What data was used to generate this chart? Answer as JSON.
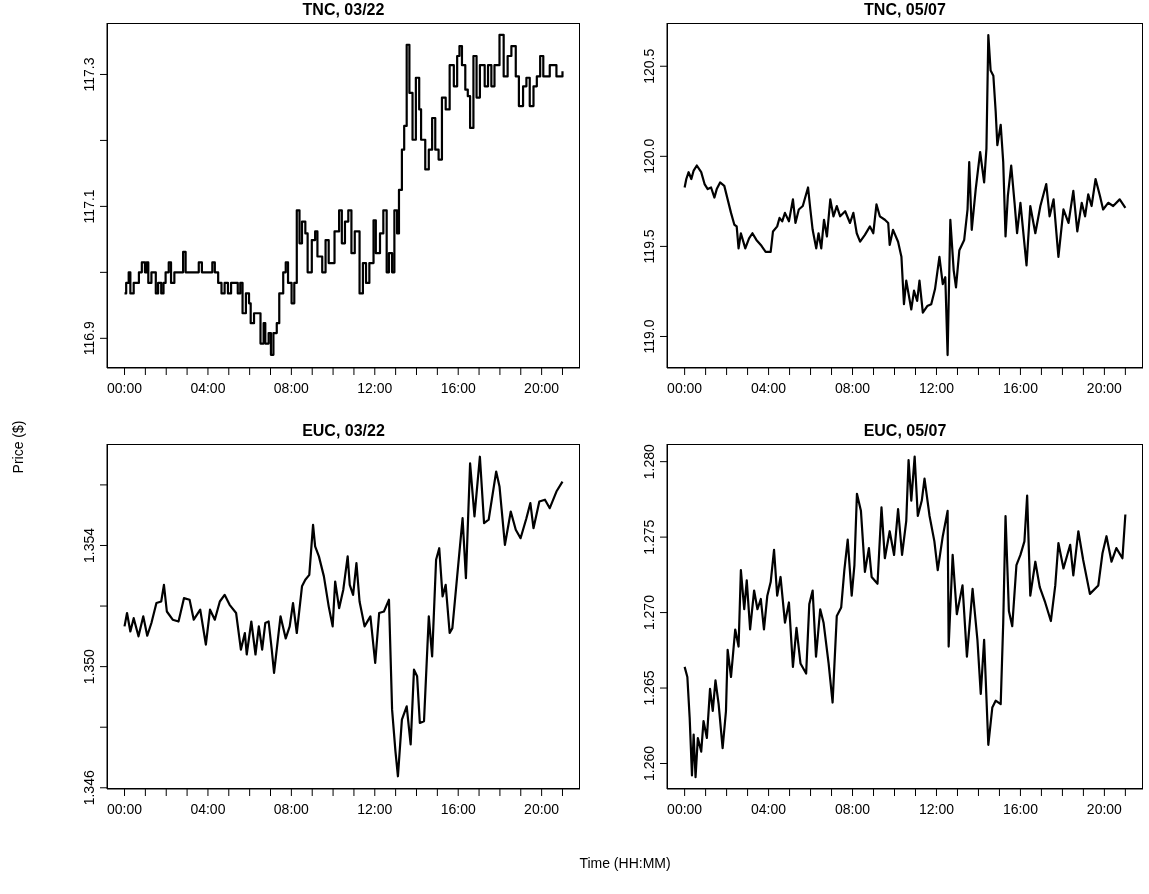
{
  "chart_data": [
    {
      "type": "step",
      "title": "TNC, 03/22",
      "ylabel": "Price ($)",
      "color": "#000000",
      "x": [
        0,
        0.08,
        0.2,
        0.28,
        0.44,
        0.59,
        0.69,
        0.83,
        0.98,
        1.06,
        1.14,
        1.29,
        1.5,
        1.61,
        1.76,
        1.87,
        1.97,
        2.12,
        2.23,
        2.39,
        2.81,
        2.93,
        3.56,
        3.71,
        4.21,
        4.33,
        4.49,
        4.65,
        4.8,
        4.96,
        5.11,
        5.43,
        5.55,
        5.66,
        5.82,
        5.97,
        6.05,
        6.21,
        6.52,
        6.67,
        6.75,
        6.91,
        7.02,
        7.14,
        7.3,
        7.42,
        7.61,
        7.73,
        7.84,
        8.01,
        8.14,
        8.26,
        8.39,
        8.51,
        8.67,
        8.78,
        8.98,
        9.14,
        9.25,
        9.48,
        9.64,
        9.79,
        10.07,
        10.29,
        10.42,
        10.57,
        10.73,
        10.88,
        11.04,
        11.27,
        11.43,
        11.58,
        11.74,
        11.94,
        12.05,
        12.25,
        12.41,
        12.57,
        12.68,
        12.83,
        12.94,
        13.07,
        13.16,
        13.3,
        13.41,
        13.53,
        13.66,
        13.81,
        13.97,
        14.13,
        14.22,
        14.42,
        14.59,
        14.75,
        14.9,
        15.06,
        15.22,
        15.4,
        15.59,
        15.79,
        15.95,
        16.06,
        16.18,
        16.34,
        16.46,
        16.57,
        16.73,
        16.88,
        17.04,
        17.27,
        17.43,
        17.59,
        17.74,
        17.98,
        18.18,
        18.37,
        18.55,
        18.76,
        18.91,
        19.11,
        19.27,
        19.43,
        19.61,
        19.77,
        19.93,
        20.08,
        20.39,
        20.71,
        21
      ],
      "values": [
        116.968,
        116.984,
        117.0,
        116.968,
        116.984,
        116.984,
        117.0,
        117.015,
        117.0,
        117.015,
        116.984,
        117.0,
        116.968,
        116.984,
        116.968,
        116.984,
        117.0,
        117.015,
        116.984,
        117.0,
        117.031,
        117.0,
        117.015,
        117.0,
        117.015,
        117.0,
        116.984,
        116.968,
        116.984,
        116.968,
        116.984,
        116.968,
        116.984,
        116.938,
        116.968,
        116.953,
        116.923,
        116.938,
        116.892,
        116.923,
        116.892,
        116.908,
        116.875,
        116.908,
        116.923,
        116.968,
        117.0,
        117.015,
        116.984,
        116.953,
        116.984,
        117.094,
        117.044,
        117.077,
        117.059,
        117.0,
        117.049,
        117.062,
        117.024,
        117.0,
        117.049,
        117.014,
        117.062,
        117.094,
        117.044,
        117.077,
        117.094,
        117.029,
        117.062,
        116.968,
        117.014,
        116.984,
        117.014,
        117.079,
        117.029,
        117.059,
        117.094,
        117.0,
        117.029,
        117.0,
        117.094,
        117.059,
        117.125,
        117.186,
        117.222,
        117.345,
        117.272,
        117.201,
        117.295,
        117.247,
        117.201,
        117.156,
        117.186,
        117.234,
        117.186,
        117.171,
        117.265,
        117.247,
        117.314,
        117.282,
        117.328,
        117.343,
        117.314,
        117.277,
        117.267,
        117.219,
        117.328,
        117.265,
        117.314,
        117.282,
        117.314,
        117.282,
        117.314,
        117.36,
        117.297,
        117.328,
        117.343,
        117.297,
        117.252,
        117.282,
        117.295,
        117.252,
        117.282,
        117.297,
        117.328,
        117.297,
        117.314,
        117.297,
        117.305
      ],
      "xlim": [
        -0.84,
        21.84
      ],
      "xticks": [
        {
          "value": 0,
          "label": "00:00"
        },
        {
          "value": 1,
          "label": null
        },
        {
          "value": 2,
          "label": null
        },
        {
          "value": 3,
          "label": null
        },
        {
          "value": 4,
          "label": "04:00"
        },
        {
          "value": 5,
          "label": null
        },
        {
          "value": 6,
          "label": null
        },
        {
          "value": 7,
          "label": null
        },
        {
          "value": 8,
          "label": "08:00"
        },
        {
          "value": 9,
          "label": null
        },
        {
          "value": 10,
          "label": null
        },
        {
          "value": 11,
          "label": null
        },
        {
          "value": 12,
          "label": "12:00"
        },
        {
          "value": 13,
          "label": null
        },
        {
          "value": 14,
          "label": null
        },
        {
          "value": 15,
          "label": null
        },
        {
          "value": 16,
          "label": "16:00"
        },
        {
          "value": 17,
          "label": null
        },
        {
          "value": 18,
          "label": null
        },
        {
          "value": 19,
          "label": null
        },
        {
          "value": 20,
          "label": "20:00"
        },
        {
          "value": 21,
          "label": null
        }
      ],
      "ylim": [
        116.855,
        117.378
      ],
      "yticks": [
        116.9,
        {
          "value": 117.0,
          "label": null
        },
        117.1,
        {
          "value": 117.2,
          "label": null
        },
        117.3
      ]
    },
    {
      "type": "line",
      "title": "TNC, 05/07",
      "color": "#000000",
      "x": [
        0,
        0.08,
        0.19,
        0.32,
        0.43,
        0.58,
        0.79,
        0.95,
        1.1,
        1.26,
        1.42,
        1.53,
        1.69,
        1.89,
        2.05,
        2.21,
        2.37,
        2.48,
        2.57,
        2.68,
        2.89,
        3.07,
        3.23,
        3.42,
        3.63,
        3.86,
        4.1,
        4.21,
        4.41,
        4.52,
        4.65,
        4.78,
        4.97,
        5.16,
        5.28,
        5.44,
        5.63,
        5.88,
        5.99,
        6.1,
        6.27,
        6.38,
        6.51,
        6.64,
        6.78,
        6.94,
        7.09,
        7.25,
        7.41,
        7.65,
        7.88,
        8.04,
        8.2,
        8.36,
        8.59,
        8.83,
        8.99,
        9.14,
        9.3,
        9.54,
        9.7,
        9.77,
        9.93,
        10.17,
        10.33,
        10.45,
        10.56,
        10.8,
        10.93,
        11.08,
        11.19,
        11.35,
        11.56,
        11.75,
        11.93,
        12.14,
        12.3,
        12.42,
        12.53,
        12.66,
        12.82,
        12.93,
        13.09,
        13.32,
        13.48,
        13.56,
        13.68,
        13.87,
        14.08,
        14.27,
        14.38,
        14.47,
        14.58,
        14.71,
        14.82,
        14.9,
        15.06,
        15.18,
        15.29,
        15.4,
        15.56,
        15.72,
        15.84,
        16.0,
        16.29,
        16.47,
        16.71,
        16.95,
        17.23,
        17.39,
        17.58,
        17.81,
        18.05,
        18.29,
        18.52,
        18.71,
        18.92,
        19.08,
        19.23,
        19.39,
        19.58,
        19.79,
        19.94,
        20.18,
        20.42,
        20.73,
        21
      ],
      "values": [
        119.827,
        119.874,
        119.912,
        119.874,
        119.921,
        119.949,
        119.912,
        119.846,
        119.818,
        119.827,
        119.771,
        119.818,
        119.855,
        119.836,
        119.761,
        119.686,
        119.62,
        119.611,
        119.489,
        119.573,
        119.489,
        119.545,
        119.573,
        119.536,
        119.508,
        119.47,
        119.47,
        119.583,
        119.611,
        119.658,
        119.639,
        119.686,
        119.639,
        119.761,
        119.63,
        119.705,
        119.724,
        119.827,
        119.705,
        119.592,
        119.489,
        119.573,
        119.489,
        119.648,
        119.555,
        119.761,
        119.667,
        119.724,
        119.667,
        119.695,
        119.63,
        119.686,
        119.573,
        119.526,
        119.564,
        119.611,
        119.573,
        119.733,
        119.667,
        119.648,
        119.63,
        119.508,
        119.592,
        119.526,
        119.442,
        119.179,
        119.31,
        119.15,
        119.254,
        119.197,
        119.31,
        119.132,
        119.169,
        119.179,
        119.263,
        119.442,
        119.291,
        119.329,
        118.897,
        119.648,
        119.367,
        119.273,
        119.479,
        119.536,
        119.705,
        119.968,
        119.592,
        119.818,
        120.024,
        119.855,
        120.043,
        120.673,
        120.476,
        120.447,
        120.25,
        120.062,
        120.175,
        119.968,
        119.555,
        119.78,
        119.949,
        119.742,
        119.573,
        119.742,
        119.395,
        119.724,
        119.573,
        119.724,
        119.846,
        119.667,
        119.761,
        119.442,
        119.705,
        119.63,
        119.808,
        119.583,
        119.742,
        119.667,
        119.789,
        119.724,
        119.874,
        119.78,
        119.705,
        119.742,
        119.724,
        119.761,
        119.714
      ],
      "xlim": [
        -0.84,
        21.84
      ],
      "xticks": [
        {
          "value": 0,
          "label": "00:00"
        },
        {
          "value": 1,
          "label": null
        },
        {
          "value": 2,
          "label": null
        },
        {
          "value": 3,
          "label": null
        },
        {
          "value": 4,
          "label": "04:00"
        },
        {
          "value": 5,
          "label": null
        },
        {
          "value": 6,
          "label": null
        },
        {
          "value": 7,
          "label": null
        },
        {
          "value": 8,
          "label": "08:00"
        },
        {
          "value": 9,
          "label": null
        },
        {
          "value": 10,
          "label": null
        },
        {
          "value": 11,
          "label": null
        },
        {
          "value": 12,
          "label": "12:00"
        },
        {
          "value": 13,
          "label": null
        },
        {
          "value": 14,
          "label": null
        },
        {
          "value": 15,
          "label": null
        },
        {
          "value": 16,
          "label": "16:00"
        },
        {
          "value": 17,
          "label": null
        },
        {
          "value": 18,
          "label": null
        },
        {
          "value": 19,
          "label": null
        },
        {
          "value": 20,
          "label": "20:00"
        },
        {
          "value": 21,
          "label": null
        }
      ],
      "ylim": [
        118.825,
        120.74
      ],
      "yticks": [
        {
          "value": 119.0,
          "label": "119.0"
        },
        119.5,
        {
          "value": 120.0,
          "label": "120.0"
        },
        120.5
      ]
    },
    {
      "type": "line",
      "title": "EUC, 03/22",
      "xlabel": "Time (HH:MM)",
      "color": "#000000",
      "x": [
        0,
        0.12,
        0.28,
        0.44,
        0.67,
        0.9,
        1.09,
        1.29,
        1.53,
        1.76,
        1.89,
        2.03,
        2.31,
        2.59,
        2.85,
        3.12,
        3.32,
        3.63,
        3.9,
        4.1,
        4.33,
        4.57,
        4.8,
        5.04,
        5.35,
        5.58,
        5.77,
        5.86,
        6.08,
        6.28,
        6.44,
        6.6,
        6.75,
        6.91,
        7.06,
        7.17,
        7.37,
        7.48,
        7.73,
        7.92,
        8.08,
        8.26,
        8.51,
        8.67,
        8.86,
        9.04,
        9.14,
        9.32,
        9.56,
        9.79,
        9.98,
        10.1,
        10.29,
        10.49,
        10.7,
        10.8,
        10.96,
        11.12,
        11.27,
        11.51,
        11.79,
        12.02,
        12.21,
        12.44,
        12.68,
        12.83,
        12.99,
        13.11,
        13.3,
        13.53,
        13.72,
        13.88,
        14.03,
        14.16,
        14.36,
        14.59,
        14.75,
        14.94,
        15.09,
        15.25,
        15.4,
        15.59,
        15.72,
        15.95,
        16.21,
        16.37,
        16.57,
        16.78,
        17.04,
        17.24,
        17.46,
        17.82,
        17.98,
        18.24,
        18.52,
        18.76,
        18.99,
        19.27,
        19.46,
        19.61,
        19.89,
        20.16,
        20.39,
        20.71,
        21
      ],
      "values": [
        1.35133,
        1.35177,
        1.35116,
        1.3516,
        1.351,
        1.35166,
        1.35102,
        1.35144,
        1.3521,
        1.35215,
        1.3527,
        1.35182,
        1.35155,
        1.35149,
        1.35226,
        1.35221,
        1.35155,
        1.35188,
        1.35073,
        1.35188,
        1.35155,
        1.35215,
        1.35237,
        1.35204,
        1.35177,
        1.35056,
        1.35111,
        1.3504,
        1.35149,
        1.3504,
        1.35133,
        1.35056,
        1.35144,
        1.35149,
        1.35056,
        1.34979,
        1.351,
        1.35166,
        1.35093,
        1.35133,
        1.3521,
        1.35111,
        1.35265,
        1.35287,
        1.35303,
        1.35468,
        1.35397,
        1.35364,
        1.35298,
        1.35199,
        1.35133,
        1.35281,
        1.35193,
        1.35254,
        1.35364,
        1.3527,
        1.35237,
        1.35342,
        1.35215,
        1.35133,
        1.35166,
        1.35012,
        1.35177,
        1.35182,
        1.35221,
        1.34858,
        1.34721,
        1.34638,
        1.34825,
        1.34869,
        1.34743,
        1.3499,
        1.34968,
        1.34814,
        1.3482,
        1.35166,
        1.35034,
        1.35353,
        1.35391,
        1.35232,
        1.3527,
        1.35111,
        1.35127,
        1.35298,
        1.3549,
        1.35292,
        1.35671,
        1.35496,
        1.35693,
        1.35474,
        1.35485,
        1.35644,
        1.35595,
        1.35402,
        1.35512,
        1.35452,
        1.35424,
        1.3549,
        1.3554,
        1.35457,
        1.35545,
        1.35551,
        1.35523,
        1.35578,
        1.35611
      ],
      "xlim": [
        -0.84,
        21.84
      ],
      "xticks": [
        {
          "value": 0,
          "label": "00:00"
        },
        {
          "value": 1,
          "label": null
        },
        {
          "value": 2,
          "label": null
        },
        {
          "value": 3,
          "label": null
        },
        {
          "value": 4,
          "label": "04:00"
        },
        {
          "value": 5,
          "label": null
        },
        {
          "value": 6,
          "label": null
        },
        {
          "value": 7,
          "label": null
        },
        {
          "value": 8,
          "label": "08:00"
        },
        {
          "value": 9,
          "label": null
        },
        {
          "value": 10,
          "label": null
        },
        {
          "value": 11,
          "label": null
        },
        {
          "value": 12,
          "label": "12:00"
        },
        {
          "value": 13,
          "label": null
        },
        {
          "value": 14,
          "label": null
        },
        {
          "value": 15,
          "label": null
        },
        {
          "value": 16,
          "label": "16:00"
        },
        {
          "value": 17,
          "label": null
        },
        {
          "value": 18,
          "label": null
        },
        {
          "value": 19,
          "label": null
        },
        {
          "value": 20,
          "label": "20:00"
        },
        {
          "value": 21,
          "label": null
        }
      ],
      "ylim": [
        1.34596,
        1.35735
      ],
      "yticks": [
        1.346,
        {
          "value": 1.348,
          "label": null
        },
        {
          "value": 1.35,
          "label": "1.350"
        },
        {
          "value": 1.352,
          "label": null
        },
        1.354,
        {
          "value": 1.356,
          "label": null
        }
      ]
    },
    {
      "type": "line",
      "title": "EUC, 05/07",
      "color": "#000000",
      "x": [
        0,
        0.13,
        0.24,
        0.35,
        0.43,
        0.52,
        0.63,
        0.79,
        0.9,
        1.06,
        1.21,
        1.34,
        1.47,
        1.62,
        1.81,
        1.97,
        2.05,
        2.21,
        2.41,
        2.57,
        2.68,
        2.84,
        2.96,
        3.12,
        3.31,
        3.47,
        3.63,
        3.78,
        3.94,
        4.1,
        4.26,
        4.41,
        4.57,
        4.78,
        4.97,
        5.16,
        5.33,
        5.52,
        5.79,
        5.94,
        6.1,
        6.26,
        6.46,
        6.62,
        6.86,
        7.05,
        7.25,
        7.46,
        7.61,
        7.77,
        7.96,
        8.09,
        8.21,
        8.4,
        8.59,
        8.78,
        8.91,
        9.19,
        9.38,
        9.54,
        9.77,
        9.98,
        10.17,
        10.36,
        10.56,
        10.67,
        10.8,
        10.96,
        11.11,
        11.3,
        11.43,
        11.67,
        11.9,
        12.06,
        12.3,
        12.53,
        12.58,
        12.77,
        12.97,
        13.24,
        13.45,
        13.72,
        13.95,
        14.11,
        14.27,
        14.47,
        14.66,
        14.82,
        15.06,
        15.18,
        15.29,
        15.45,
        15.61,
        15.81,
        16.0,
        16.19,
        16.32,
        16.47,
        16.71,
        16.92,
        17.18,
        17.45,
        17.66,
        17.81,
        18.05,
        18.37,
        18.52,
        18.76,
        18.99,
        19.31,
        19.71,
        19.91,
        20.1,
        20.34,
        20.57,
        20.86,
        21
      ],
      "values": [
        1.2664,
        1.26573,
        1.26303,
        1.25921,
        1.26191,
        1.2591,
        1.26169,
        1.26079,
        1.26281,
        1.26169,
        1.26494,
        1.26348,
        1.26551,
        1.26393,
        1.26101,
        1.26348,
        1.26753,
        1.26573,
        1.26888,
        1.26775,
        1.27281,
        1.27022,
        1.27213,
        1.26888,
        1.27146,
        1.27022,
        1.2709,
        1.26888,
        1.27112,
        1.27202,
        1.27416,
        1.27112,
        1.27236,
        1.26933,
        1.27067,
        1.2664,
        1.26899,
        1.26663,
        1.26596,
        1.27056,
        1.27146,
        1.26708,
        1.27022,
        1.26933,
        1.26663,
        1.26404,
        1.26978,
        1.27034,
        1.27281,
        1.27483,
        1.27112,
        1.27315,
        1.27787,
        1.27674,
        1.2727,
        1.27427,
        1.27236,
        1.27191,
        1.27697,
        1.2736,
        1.27539,
        1.27382,
        1.27685,
        1.27382,
        1.27607,
        1.28011,
        1.27742,
        1.28034,
        1.2764,
        1.27742,
        1.27888,
        1.2764,
        1.27472,
        1.27281,
        1.27506,
        1.27674,
        1.26775,
        1.27382,
        1.26989,
        1.2718,
        1.26708,
        1.27157,
        1.2682,
        1.26461,
        1.2682,
        1.26124,
        1.26371,
        1.26416,
        1.26393,
        1.26933,
        1.2764,
        1.2701,
        1.2691,
        1.27315,
        1.27382,
        1.27472,
        1.27775,
        1.27112,
        1.27337,
        1.27169,
        1.27067,
        1.26944,
        1.2718,
        1.27461,
        1.27292,
        1.27449,
        1.27247,
        1.27539,
        1.27348,
        1.27124,
        1.2718,
        1.27393,
        1.27506,
        1.27337,
        1.27427,
        1.2736,
        1.2765
      ],
      "xlim": [
        -0.84,
        21.84
      ],
      "xticks": [
        {
          "value": 0,
          "label": "00:00"
        },
        {
          "value": 1,
          "label": null
        },
        {
          "value": 2,
          "label": null
        },
        {
          "value": 3,
          "label": null
        },
        {
          "value": 4,
          "label": "04:00"
        },
        {
          "value": 5,
          "label": null
        },
        {
          "value": 6,
          "label": null
        },
        {
          "value": 7,
          "label": null
        },
        {
          "value": 8,
          "label": "08:00"
        },
        {
          "value": 9,
          "label": null
        },
        {
          "value": 10,
          "label": null
        },
        {
          "value": 11,
          "label": null
        },
        {
          "value": 12,
          "label": "12:00"
        },
        {
          "value": 13,
          "label": null
        },
        {
          "value": 14,
          "label": null
        },
        {
          "value": 15,
          "label": null
        },
        {
          "value": 16,
          "label": "16:00"
        },
        {
          "value": 17,
          "label": null
        },
        {
          "value": 18,
          "label": null
        },
        {
          "value": 19,
          "label": null
        },
        {
          "value": 20,
          "label": "20:00"
        },
        {
          "value": 21,
          "label": null
        }
      ],
      "ylim": [
        1.25831,
        1.28117
      ],
      "yticks": [
        {
          "value": 1.26,
          "label": "1.260"
        },
        1.265,
        {
          "value": 1.27,
          "label": "1.270"
        },
        1.275,
        {
          "value": 1.28,
          "label": "1.280"
        }
      ]
    }
  ]
}
